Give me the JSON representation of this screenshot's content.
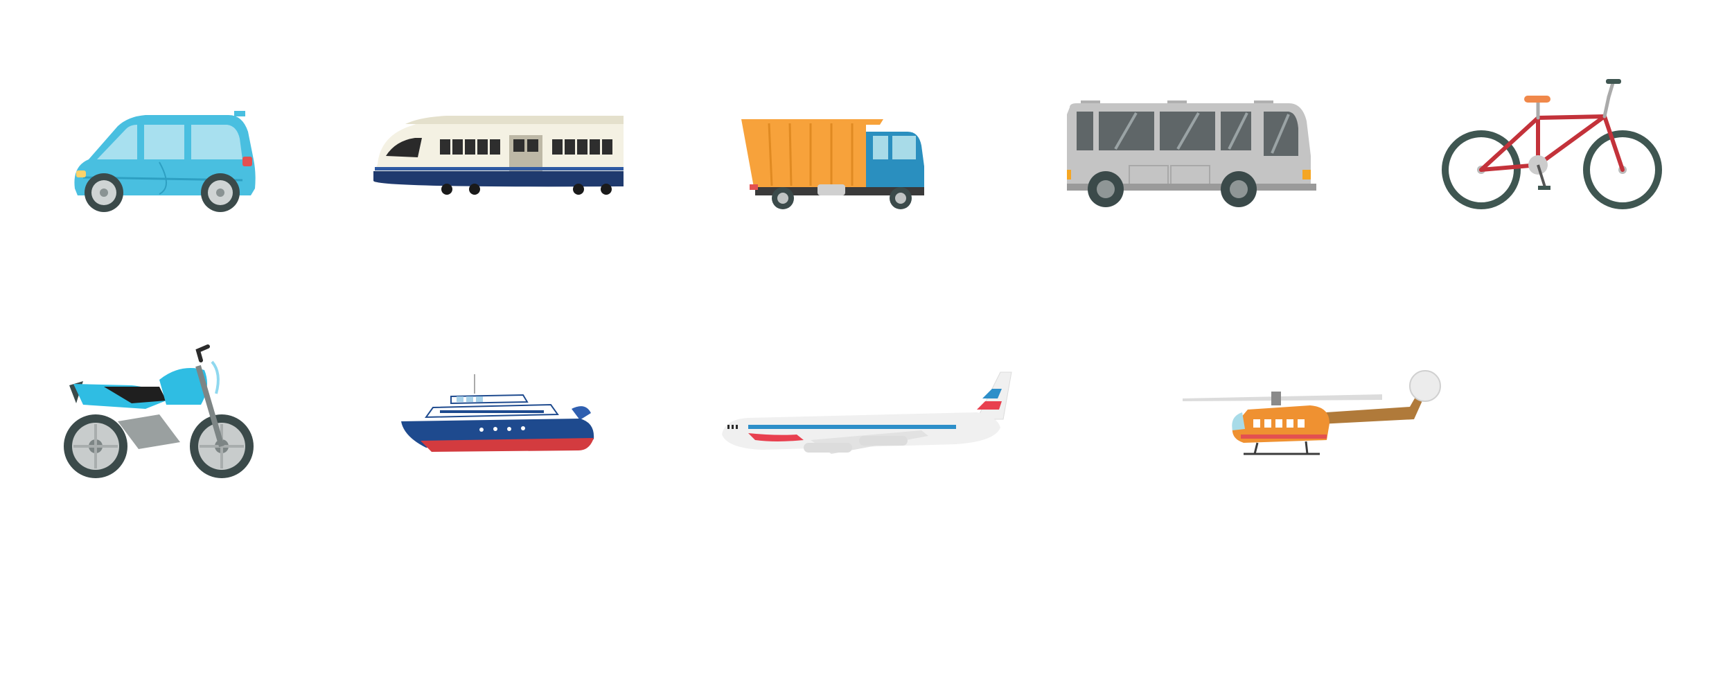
{
  "scene": {
    "background": "#ffffff",
    "rows": [
      [
        "car-icon",
        "train-icon",
        "truck-icon",
        "bus-icon",
        "bicycle-icon"
      ],
      [
        "motorcycle-icon",
        "ship-icon",
        "airplane-icon",
        "helicopter-icon"
      ]
    ]
  },
  "palette": {
    "car_body": "#49bfe0",
    "train_navy": "#1f3a6e",
    "train_cream": "#f4f1e3",
    "truck_orange": "#f7a23b",
    "truck_cab": "#2a8fbf",
    "bus_gray": "#c4c4c4",
    "bicycle_frame": "#c3323a",
    "bicycle_tire": "#3f5651",
    "motorcycle_blue": "#2fbde3",
    "ship_navy": "#1e4a8e",
    "ship_red": "#d33b3f",
    "airplane_white": "#f0f0f0",
    "airplane_accent": "#e8404f",
    "helicopter_orange": "#ef9131",
    "helicopter_brown": "#b07a3a"
  }
}
